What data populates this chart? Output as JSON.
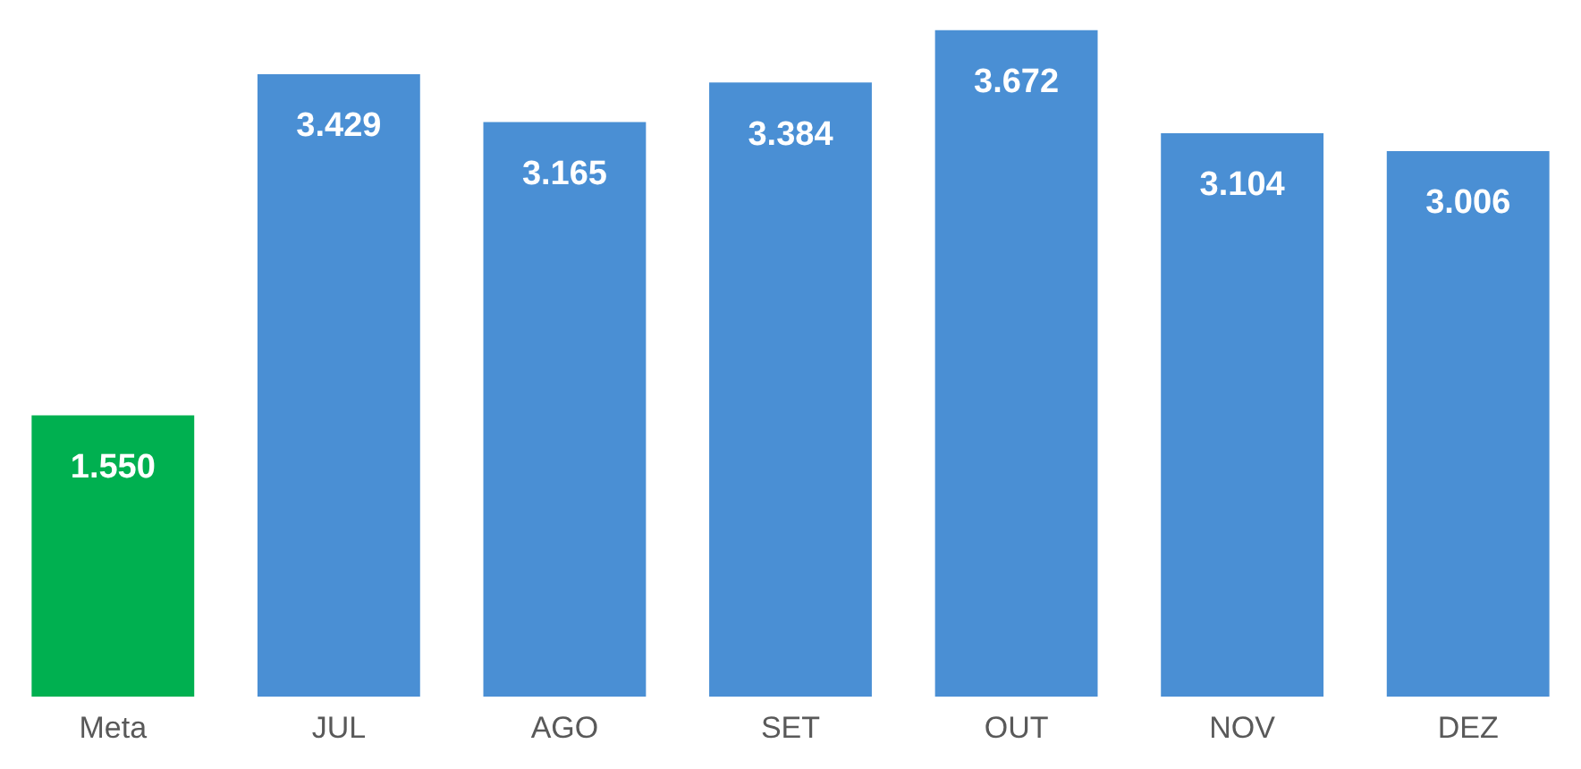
{
  "chart_data": {
    "type": "bar",
    "categories": [
      "Meta",
      "JUL",
      "AGO",
      "SET",
      "OUT",
      "NOV",
      "DEZ"
    ],
    "values": [
      1550,
      3429,
      3165,
      3384,
      3672,
      3104,
      3006
    ],
    "colors": [
      "#00b050",
      "#4a8fd4",
      "#4a8fd4",
      "#4a8fd4",
      "#4a8fd4",
      "#4a8fd4",
      "#4a8fd4"
    ],
    "value_labels": [
      "1.550",
      "3.429",
      "3.165",
      "3.384",
      "3.672",
      "3.104",
      "3.006"
    ],
    "ylim": [
      0,
      3700
    ],
    "grid": false,
    "legend": false
  }
}
